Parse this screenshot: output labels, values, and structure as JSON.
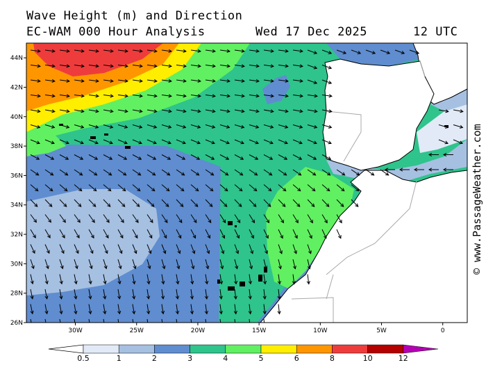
{
  "header": {
    "title": "Wave Height (m) and Direction",
    "model": "EC-WAM 000 Hour Analysis",
    "date": "Wed 17 Dec 2025",
    "time": "12 UTC"
  },
  "credit": "© www.PassageWeather.com",
  "map": {
    "lat_range": [
      26,
      45
    ],
    "lon_range": [
      -34,
      2
    ],
    "lat_ticks": [
      {
        "v": 44,
        "label": "44N"
      },
      {
        "v": 42,
        "label": "42N"
      },
      {
        "v": 40,
        "label": "40N"
      },
      {
        "v": 38,
        "label": "38N"
      },
      {
        "v": 36,
        "label": "36N"
      },
      {
        "v": 34,
        "label": "34N"
      },
      {
        "v": 32,
        "label": "32N"
      },
      {
        "v": 30,
        "label": "30N"
      },
      {
        "v": 28,
        "label": "28N"
      },
      {
        "v": 26,
        "label": "26N"
      }
    ],
    "lon_ticks": [
      {
        "v": -30,
        "label": "30W"
      },
      {
        "v": -25,
        "label": "25W"
      },
      {
        "v": -20,
        "label": "20W"
      },
      {
        "v": -15,
        "label": "15W"
      },
      {
        "v": -10,
        "label": "10W"
      },
      {
        "v": -5,
        "label": "5W"
      },
      {
        "v": 0,
        "label": "0"
      }
    ],
    "land_color": "#ffffff",
    "border_color": "#a8a8a8"
  },
  "legend": {
    "labels": [
      "0.5",
      "1",
      "2",
      "3",
      "4",
      "5",
      "6",
      "8",
      "10",
      "12"
    ],
    "colors": [
      "#e1eaf6",
      "#a6c0e2",
      "#5f8dcf",
      "#2ec48c",
      "#61f061",
      "#ffee00",
      "#ff9600",
      "#ee3c3c",
      "#b40000",
      "#b400b4"
    ]
  },
  "wind_arrows_note": ""
}
